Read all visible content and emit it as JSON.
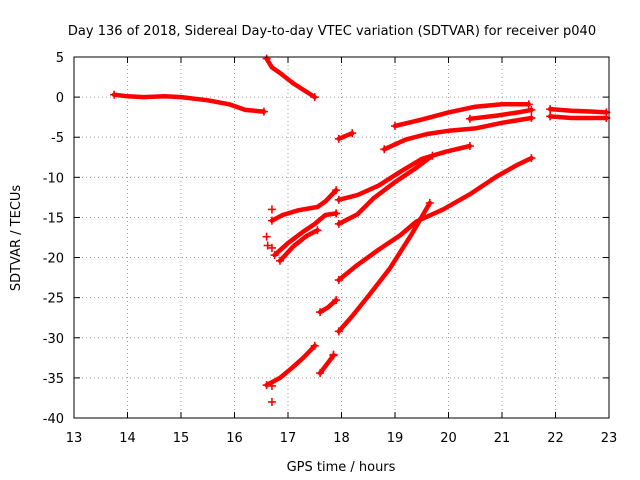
{
  "colors": {
    "series": "#ff0000",
    "frame": "#000000",
    "grid": "#a0a0a0"
  },
  "chart_data": {
    "type": "scatter",
    "title": "Day 136 of 2018, Sidereal Day-to-day VTEC variation (SDTVAR) for receiver p040",
    "xlabel": "GPS time / hours",
    "ylabel": "SDTVAR / TECUs",
    "xlim": [
      13,
      23
    ],
    "ylim": [
      -40,
      5
    ],
    "xticks": [
      "13",
      "14",
      "15",
      "16",
      "17",
      "18",
      "19",
      "20",
      "21",
      "22",
      "23"
    ],
    "yticks": [
      "5",
      "0",
      "-5",
      "-10",
      "-15",
      "-20",
      "-25",
      "-30",
      "-35",
      "-40"
    ],
    "grid": true,
    "series": [
      {
        "points": [
          [
            13.75,
            0.3
          ],
          [
            14.0,
            0.1
          ],
          [
            14.3,
            0.0
          ],
          [
            14.7,
            0.1
          ],
          [
            15.0,
            0.0
          ],
          [
            15.5,
            -0.4
          ],
          [
            15.9,
            -0.9
          ],
          [
            16.2,
            -1.6
          ],
          [
            16.55,
            -1.8
          ]
        ]
      },
      {
        "points": [
          [
            16.6,
            4.8
          ],
          [
            16.7,
            3.7
          ],
          [
            16.85,
            3.0
          ],
          [
            17.1,
            1.7
          ],
          [
            17.5,
            0.0
          ]
        ]
      },
      {
        "points": [
          [
            16.7,
            -15.4
          ],
          [
            16.9,
            -14.7
          ],
          [
            17.2,
            -14.1
          ],
          [
            17.55,
            -13.7
          ],
          [
            17.7,
            -13.0
          ],
          [
            17.9,
            -11.6
          ]
        ]
      },
      {
        "points": [
          [
            16.75,
            -19.7
          ],
          [
            17.0,
            -18.2
          ],
          [
            17.3,
            -16.7
          ],
          [
            17.5,
            -15.8
          ],
          [
            17.7,
            -14.7
          ],
          [
            17.9,
            -14.5
          ]
        ]
      },
      {
        "points": [
          [
            16.85,
            -20.4
          ],
          [
            17.1,
            -18.6
          ],
          [
            17.35,
            -17.3
          ],
          [
            17.55,
            -16.6
          ]
        ]
      },
      {
        "points": [
          [
            16.6,
            -35.9
          ],
          [
            16.85,
            -35.0
          ],
          [
            17.1,
            -33.6
          ],
          [
            17.3,
            -32.4
          ],
          [
            17.5,
            -31.0
          ]
        ]
      },
      {
        "points": [
          [
            17.6,
            -34.4
          ],
          [
            17.75,
            -33.1
          ],
          [
            17.85,
            -32.2
          ]
        ]
      },
      {
        "points": [
          [
            17.6,
            -26.8
          ],
          [
            17.75,
            -26.2
          ],
          [
            17.9,
            -25.3
          ]
        ]
      },
      {
        "points": [
          [
            17.95,
            -5.2
          ],
          [
            18.2,
            -4.5
          ]
        ]
      },
      {
        "points": [
          [
            17.95,
            -12.8
          ],
          [
            18.3,
            -12.2
          ],
          [
            18.7,
            -11.0
          ],
          [
            19.1,
            -9.3
          ],
          [
            19.5,
            -7.7
          ],
          [
            19.95,
            -6.8
          ],
          [
            20.4,
            -6.1
          ]
        ]
      },
      {
        "points": [
          [
            17.95,
            -15.8
          ],
          [
            18.3,
            -14.6
          ],
          [
            18.6,
            -12.6
          ],
          [
            19.0,
            -10.6
          ],
          [
            19.4,
            -8.8
          ],
          [
            19.7,
            -7.3
          ]
        ]
      },
      {
        "points": [
          [
            17.95,
            -22.8
          ],
          [
            18.3,
            -20.9
          ],
          [
            18.7,
            -19.0
          ],
          [
            19.1,
            -17.2
          ],
          [
            19.4,
            -15.5
          ],
          [
            19.9,
            -14.0
          ],
          [
            20.4,
            -12.1
          ],
          [
            20.9,
            -9.9
          ],
          [
            21.3,
            -8.4
          ],
          [
            21.55,
            -7.6
          ]
        ]
      },
      {
        "points": [
          [
            17.95,
            -29.2
          ],
          [
            18.2,
            -27.3
          ],
          [
            18.5,
            -24.8
          ],
          [
            18.9,
            -21.4
          ],
          [
            19.3,
            -17.2
          ],
          [
            19.65,
            -13.2
          ]
        ]
      },
      {
        "points": [
          [
            18.8,
            -6.5
          ],
          [
            19.2,
            -5.3
          ],
          [
            19.6,
            -4.6
          ],
          [
            20.0,
            -4.2
          ],
          [
            20.5,
            -3.9
          ],
          [
            21.0,
            -3.2
          ],
          [
            21.55,
            -2.6
          ]
        ]
      },
      {
        "points": [
          [
            19.0,
            -3.6
          ],
          [
            19.5,
            -2.8
          ],
          [
            20.0,
            -1.9
          ],
          [
            20.5,
            -1.2
          ],
          [
            21.0,
            -0.9
          ],
          [
            21.5,
            -0.9
          ]
        ]
      },
      {
        "points": [
          [
            20.4,
            -2.7
          ],
          [
            20.9,
            -2.3
          ],
          [
            21.3,
            -1.9
          ],
          [
            21.55,
            -1.6
          ]
        ]
      },
      {
        "points": [
          [
            21.9,
            -1.5
          ],
          [
            22.3,
            -1.7
          ],
          [
            22.7,
            -1.8
          ],
          [
            22.95,
            -1.9
          ]
        ]
      },
      {
        "points": [
          [
            21.9,
            -2.4
          ],
          [
            22.3,
            -2.6
          ],
          [
            22.7,
            -2.6
          ],
          [
            22.95,
            -2.6
          ]
        ]
      }
    ],
    "markers": [
      [
        16.6,
        -17.4
      ],
      [
        16.62,
        -18.5
      ],
      [
        16.7,
        -18.8
      ],
      [
        16.7,
        -14.0
      ],
      [
        16.7,
        -38.0
      ],
      [
        16.7,
        -36.0
      ],
      [
        17.9,
        -14.5
      ],
      [
        17.85,
        -32.1
      ]
    ]
  }
}
